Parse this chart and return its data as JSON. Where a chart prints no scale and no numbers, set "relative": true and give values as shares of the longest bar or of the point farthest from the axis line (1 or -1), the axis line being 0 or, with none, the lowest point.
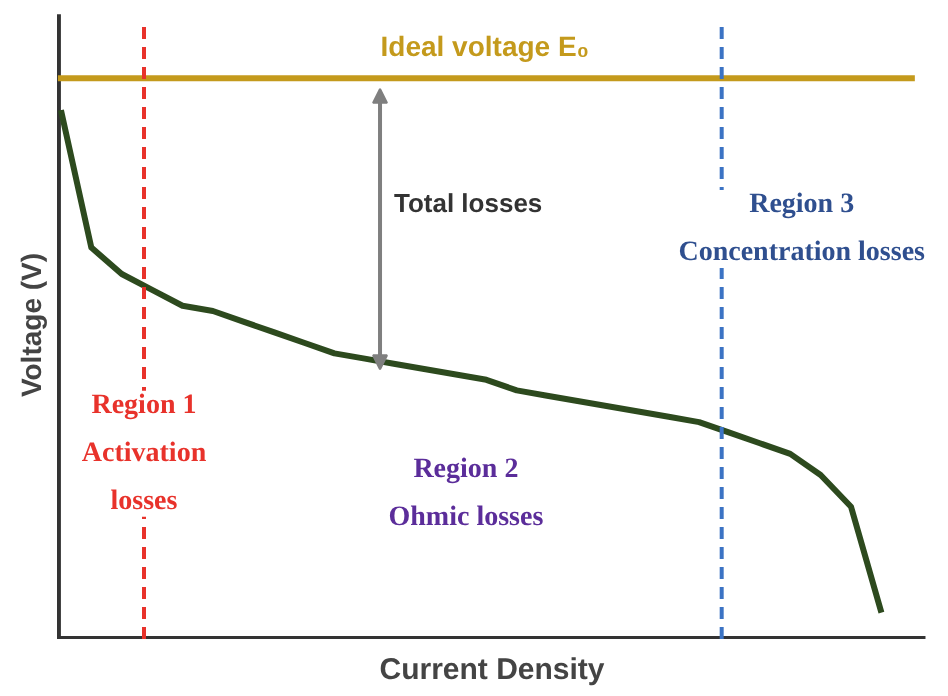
{
  "chart_data": {
    "type": "line",
    "relative": true,
    "xlabel": "Current Density",
    "ylabel": "Voltage (V)",
    "categories": [
      null,
      null,
      null,
      null,
      null,
      null,
      null,
      null,
      null,
      null,
      null,
      null,
      null,
      null,
      null,
      null,
      null,
      null,
      null,
      null,
      null,
      null,
      null,
      null,
      null,
      null,
      null,
      null
    ],
    "series": [
      {
        "color": "#2d4a1e",
        "values": [
          1.0,
          0.74,
          0.69,
          0.66,
          0.63,
          0.62,
          0.6,
          0.58,
          0.56,
          0.54,
          0.53,
          0.52,
          0.51,
          0.5,
          0.49,
          0.47,
          0.46,
          0.45,
          0.44,
          0.43,
          0.42,
          0.41,
          0.39,
          0.37,
          0.35,
          0.31,
          0.25,
          0.05
        ]
      }
    ],
    "ref_lines": [
      {
        "axis": "y",
        "value": 1.06,
        "label": "Ideal voltage E₀",
        "color": "#c49a1c",
        "line_style": "solid"
      }
    ],
    "annotations": [
      "Total losses",
      "Region 1\nActivation\nlosses",
      "Region 2\nOhmic losses",
      "Region 3\nConcentration losses"
    ],
    "grid": false,
    "marker": "none",
    "line_style": "solid"
  }
}
